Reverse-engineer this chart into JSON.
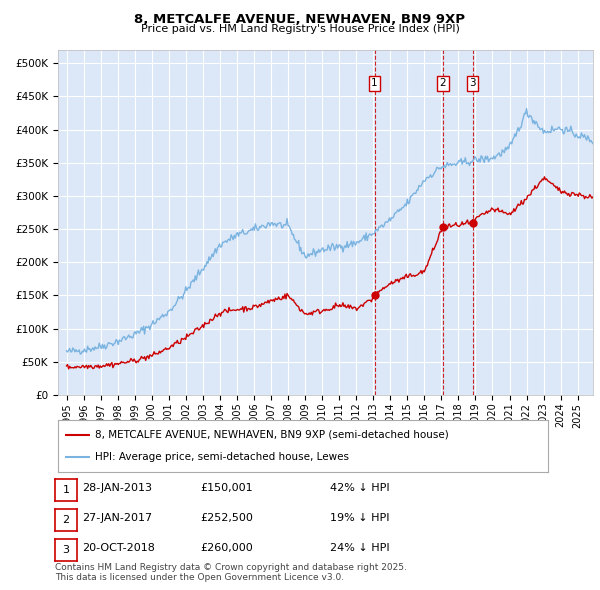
{
  "title1": "8, METCALFE AVENUE, NEWHAVEN, BN9 9XP",
  "title2": "Price paid vs. HM Land Registry's House Price Index (HPI)",
  "plot_bg_color": "#dce8f8",
  "grid_color": "#ffffff",
  "hpi_color": "#7ab3e0",
  "price_color": "#cc0000",
  "vline_color": "#cc0000",
  "annotations": [
    {
      "label": "1",
      "date": "28-JAN-2013",
      "price": "£150,001",
      "note": "42% ↓ HPI"
    },
    {
      "label": "2",
      "date": "27-JAN-2017",
      "price": "£252,500",
      "note": "19% ↓ HPI"
    },
    {
      "label": "3",
      "date": "20-OCT-2018",
      "price": "£260,000",
      "note": "24% ↓ HPI"
    }
  ],
  "sale_date_nums": [
    2013.08,
    2017.08,
    2018.83
  ],
  "sale_prices": [
    150001,
    252500,
    260000
  ],
  "legend_entry1": "8, METCALFE AVENUE, NEWHAVEN, BN9 9XP (semi-detached house)",
  "legend_entry2": "HPI: Average price, semi-detached house, Lewes",
  "footer": "Contains HM Land Registry data © Crown copyright and database right 2025.\nThis data is licensed under the Open Government Licence v3.0.",
  "xlim": [
    1994.5,
    2025.9
  ],
  "ylim": [
    0,
    520000
  ],
  "yticks": [
    0,
    50000,
    100000,
    150000,
    200000,
    250000,
    300000,
    350000,
    400000,
    450000,
    500000
  ],
  "xtick_years": [
    1995,
    1996,
    1997,
    1998,
    1999,
    2000,
    2001,
    2002,
    2003,
    2004,
    2005,
    2006,
    2007,
    2008,
    2009,
    2010,
    2011,
    2012,
    2013,
    2014,
    2015,
    2016,
    2017,
    2018,
    2019,
    2020,
    2021,
    2022,
    2023,
    2024,
    2025
  ]
}
